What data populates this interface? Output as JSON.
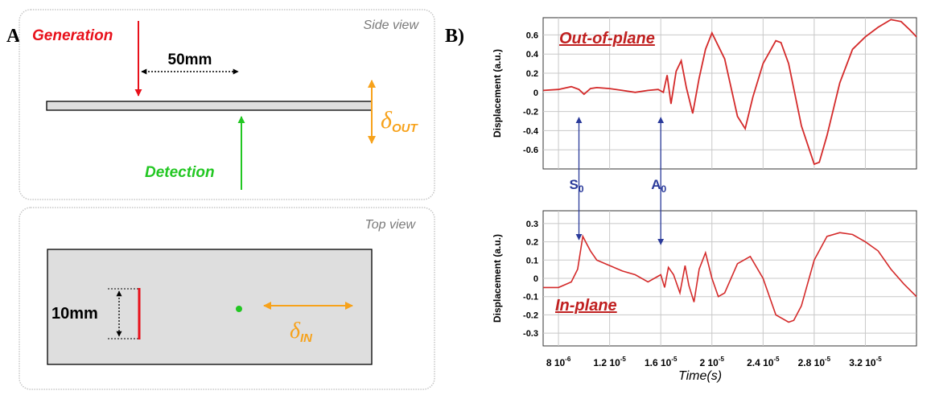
{
  "panel_a": {
    "label": "A)",
    "side_view": {
      "title": "Side view",
      "generation_label": "Generation",
      "distance_label": "50mm",
      "detection_label": "Detection",
      "delta_symbol": "δ",
      "delta_subscript": "OUT"
    },
    "top_view": {
      "title": "Top view",
      "length_label": "10mm",
      "delta_symbol": "δ",
      "delta_subscript": "IN"
    },
    "colors": {
      "generation": "#e8101a",
      "detection": "#22c722",
      "displacement": "#f7a21b",
      "box_border": "#c7c7c7",
      "plate_fill": "#dedede"
    }
  },
  "panel_b": {
    "label": "B)",
    "wave_labels": {
      "s0": "S",
      "a0": "A",
      "subscript": "0"
    },
    "x_axis_label": "Time(s)",
    "x_ticks": [
      {
        "value": 8e-06,
        "mantissa": "8",
        "exp": "-6"
      },
      {
        "value": 1.2e-05,
        "mantissa": "1.2",
        "exp": "-5"
      },
      {
        "value": 1.6e-05,
        "mantissa": "1.6",
        "exp": "-5"
      },
      {
        "value": 2e-05,
        "mantissa": "2",
        "exp": "-5"
      },
      {
        "value": 2.4e-05,
        "mantissa": "2.4",
        "exp": "-5"
      },
      {
        "value": 2.8e-05,
        "mantissa": "2.8",
        "exp": "-5"
      },
      {
        "value": 3.2e-05,
        "mantissa": "3.2",
        "exp": "-5"
      }
    ],
    "colors": {
      "trace": "#d42a2a",
      "title": "#c02020",
      "marker": "#2a3a9a",
      "grid": "#c8c8c8"
    },
    "charts": [
      {
        "type": "line",
        "title": "Out-of-plane",
        "ylabel": "Displacement (a.u.)",
        "yticks": [
          0.6,
          0.4,
          0.2,
          0,
          -0.2,
          -0.4,
          -0.6
        ],
        "xlim": [
          6.8e-06,
          3.6e-05
        ],
        "ylim": [
          -0.8,
          0.78
        ],
        "x": [
          6.8e-06,
          8e-06,
          9e-06,
          9.6e-06,
          1e-05,
          1.05e-05,
          1.1e-05,
          1.2e-05,
          1.3e-05,
          1.4e-05,
          1.5e-05,
          1.58e-05,
          1.62e-05,
          1.65e-05,
          1.68e-05,
          1.72e-05,
          1.76e-05,
          1.8e-05,
          1.85e-05,
          1.9e-05,
          1.95e-05,
          2e-05,
          2.1e-05,
          2.2e-05,
          2.26e-05,
          2.32e-05,
          2.4e-05,
          2.5e-05,
          2.54e-05,
          2.6e-05,
          2.7e-05,
          2.8e-05,
          2.84e-05,
          2.9e-05,
          3e-05,
          3.1e-05,
          3.2e-05,
          3.3e-05,
          3.4e-05,
          3.48e-05,
          3.55e-05,
          3.6e-05
        ],
        "y": [
          0.02,
          0.03,
          0.06,
          0.03,
          -0.02,
          0.04,
          0.05,
          0.04,
          0.02,
          0.0,
          0.02,
          0.03,
          0.0,
          0.18,
          -0.12,
          0.22,
          0.33,
          0.05,
          -0.22,
          0.15,
          0.45,
          0.62,
          0.35,
          -0.25,
          -0.38,
          -0.05,
          0.3,
          0.54,
          0.52,
          0.3,
          -0.35,
          -0.75,
          -0.73,
          -0.45,
          0.1,
          0.45,
          0.58,
          0.68,
          0.76,
          0.74,
          0.65,
          0.58
        ]
      },
      {
        "type": "line",
        "title": "In-plane",
        "ylabel": "Displacement (a.u.)",
        "yticks": [
          0.3,
          0.2,
          0.1,
          0,
          -0.1,
          -0.2,
          -0.3
        ],
        "xlim": [
          6.8e-06,
          3.6e-05
        ],
        "ylim": [
          -0.37,
          0.37
        ],
        "x": [
          6.8e-06,
          8e-06,
          9e-06,
          9.5e-06,
          9.9e-06,
          1.02e-05,
          1.05e-05,
          1.1e-05,
          1.2e-05,
          1.3e-05,
          1.4e-05,
          1.5e-05,
          1.6e-05,
          1.63e-05,
          1.66e-05,
          1.7e-05,
          1.75e-05,
          1.79e-05,
          1.82e-05,
          1.86e-05,
          1.9e-05,
          1.95e-05,
          2e-05,
          2.05e-05,
          2.1e-05,
          2.2e-05,
          2.3e-05,
          2.4e-05,
          2.5e-05,
          2.6e-05,
          2.64e-05,
          2.7e-05,
          2.8e-05,
          2.9e-05,
          3e-05,
          3.1e-05,
          3.2e-05,
          3.3e-05,
          3.4e-05,
          3.5e-05,
          3.6e-05
        ],
        "y": [
          -0.05,
          -0.05,
          -0.02,
          0.05,
          0.23,
          0.19,
          0.15,
          0.1,
          0.07,
          0.04,
          0.02,
          -0.02,
          0.02,
          -0.05,
          0.06,
          0.02,
          -0.08,
          0.07,
          -0.04,
          -0.13,
          0.05,
          0.14,
          0.0,
          -0.1,
          -0.08,
          0.08,
          0.12,
          0.0,
          -0.2,
          -0.24,
          -0.23,
          -0.15,
          0.1,
          0.23,
          0.25,
          0.24,
          0.2,
          0.15,
          0.05,
          -0.03,
          -0.1
        ]
      }
    ]
  }
}
